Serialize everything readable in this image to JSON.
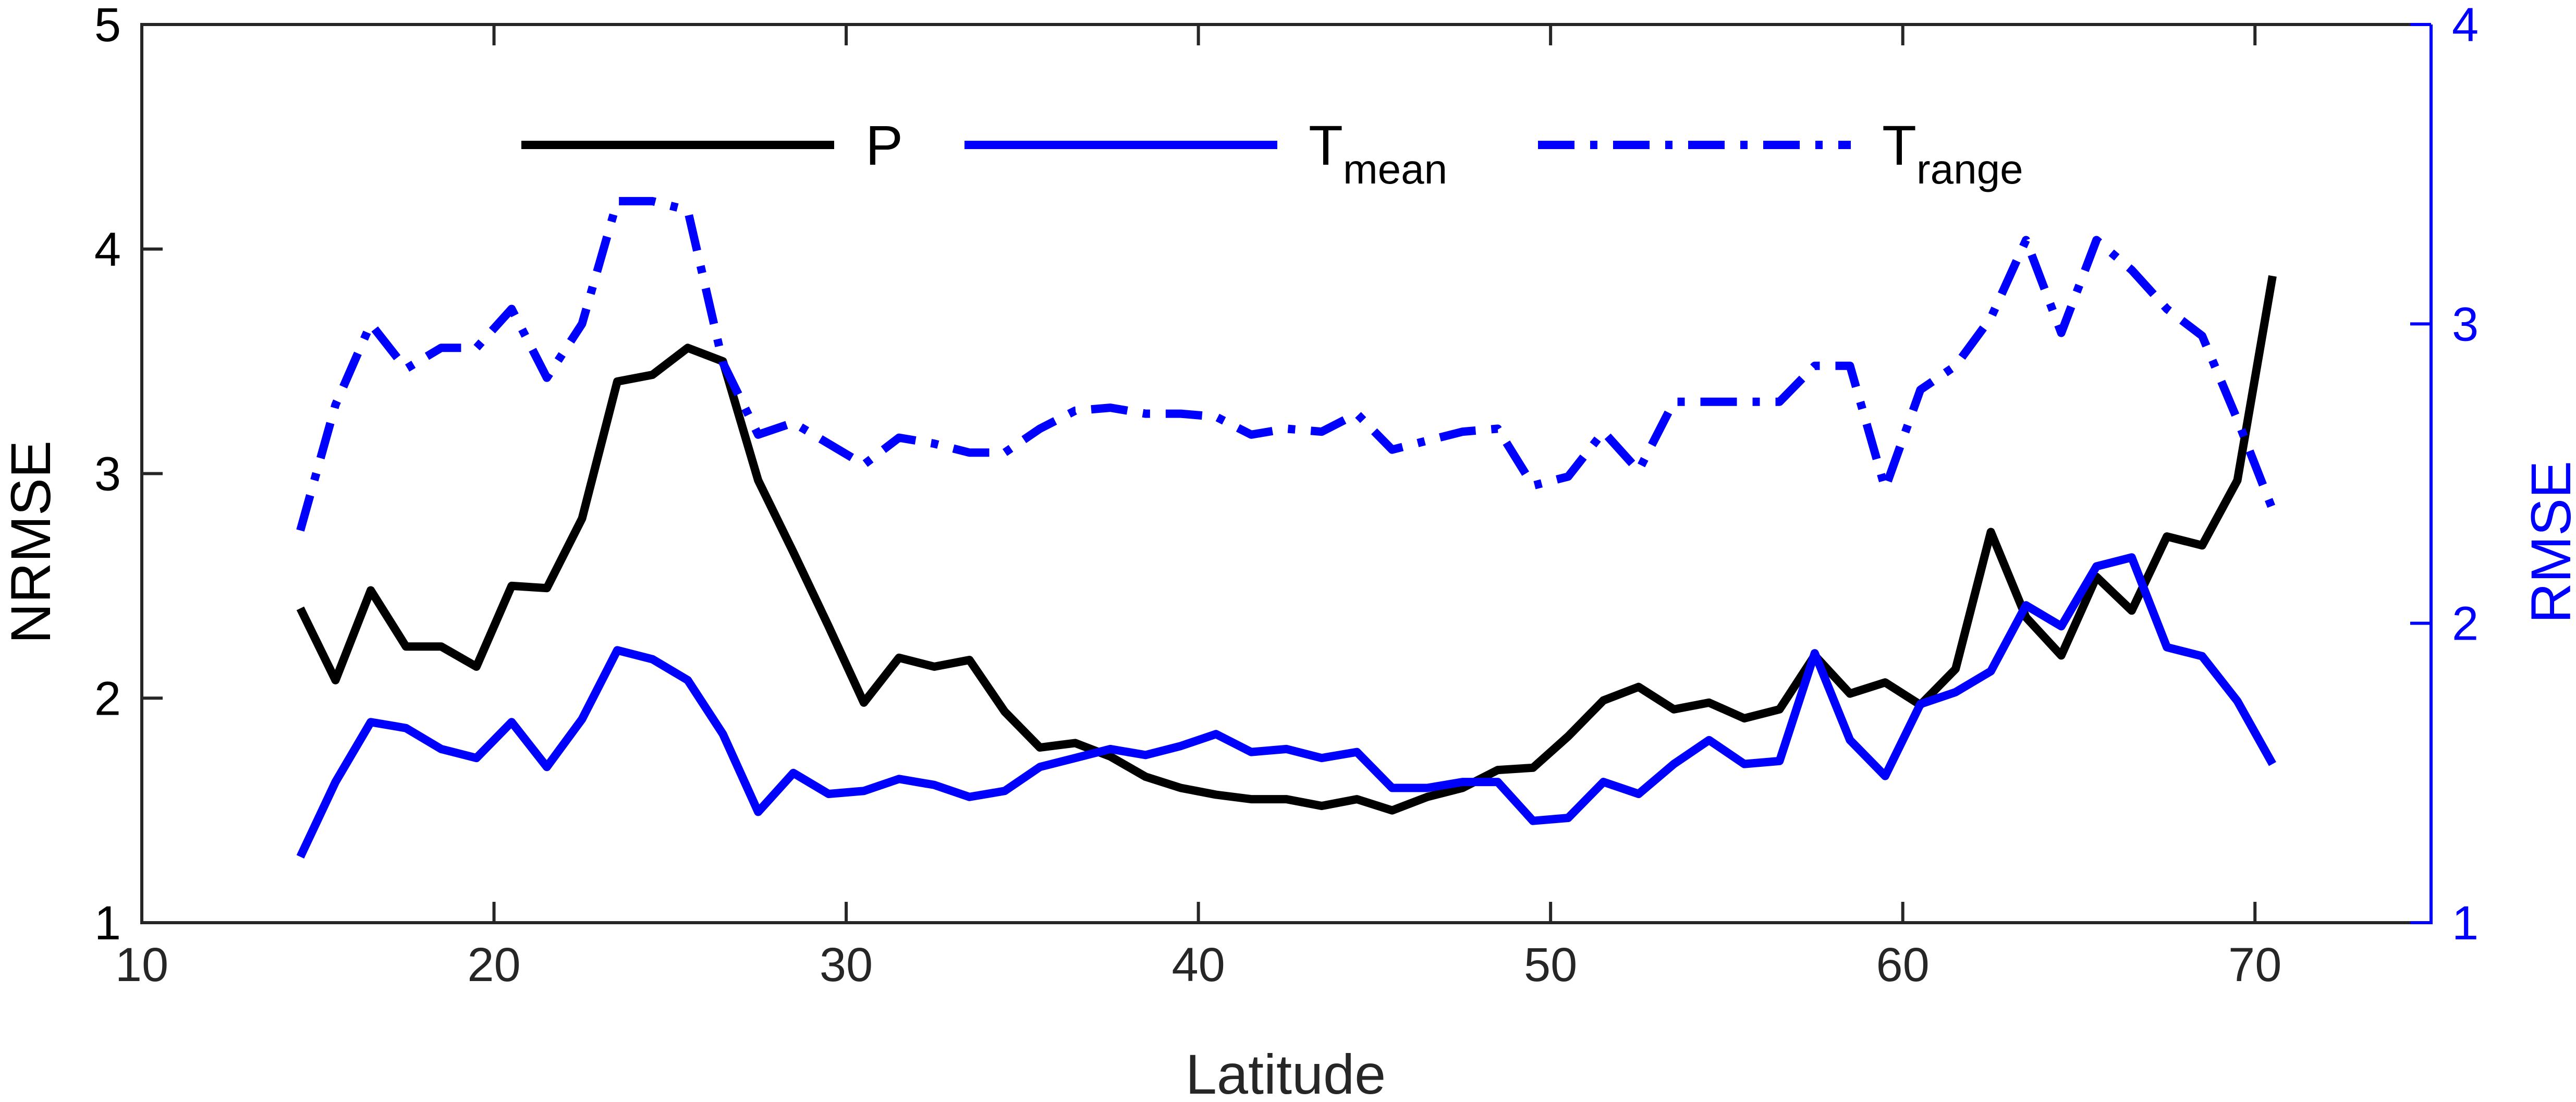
{
  "chart_data": {
    "type": "line",
    "title": "",
    "xlabel": "Latitude",
    "ylabel": "NRMSE",
    "y2label": "RMSE",
    "xlim": [
      10,
      75
    ],
    "ylim": [
      1,
      5
    ],
    "y2lim": [
      1,
      4
    ],
    "xticks": [
      10,
      20,
      30,
      40,
      50,
      60,
      70
    ],
    "yticks": [
      1,
      2,
      3,
      4,
      5
    ],
    "y2ticks": [
      1,
      2,
      3,
      4
    ],
    "grid": false,
    "legend_position": "top",
    "x": [
      14.5,
      15.5,
      16.5,
      17.5,
      18.5,
      19.5,
      20.5,
      21.5,
      22.5,
      23.5,
      24.5,
      25.5,
      26.5,
      27.5,
      28.5,
      29.5,
      30.5,
      31.5,
      32.5,
      33.5,
      34.5,
      35.5,
      36.5,
      37.5,
      38.5,
      39.5,
      40.5,
      41.5,
      42.5,
      43.5,
      44.5,
      45.5,
      46.5,
      47.5,
      48.5,
      49.5,
      50.5,
      51.5,
      52.5,
      53.5,
      54.5,
      55.5,
      56.5,
      57.5,
      58.5,
      59.5,
      60.5,
      61.5,
      62.5,
      63.5,
      64.5,
      65.5,
      66.5,
      67.5,
      68.5,
      69.5,
      70.5
    ],
    "series": [
      {
        "name": "P",
        "axis": "left",
        "color": "#000000",
        "dash": "solid",
        "values": [
          2.4,
          2.08,
          2.48,
          2.23,
          2.23,
          2.14,
          2.5,
          2.49,
          2.8,
          3.41,
          3.44,
          3.56,
          3.5,
          2.97,
          2.65,
          2.32,
          1.98,
          2.18,
          2.14,
          2.17,
          1.94,
          1.78,
          1.8,
          1.74,
          1.65,
          1.6,
          1.57,
          1.55,
          1.55,
          1.52,
          1.55,
          1.5,
          1.56,
          1.6,
          1.68,
          1.69,
          1.83,
          1.99,
          2.05,
          1.95,
          1.98,
          1.91,
          1.95,
          2.19,
          2.02,
          2.07,
          1.97,
          2.13,
          2.74,
          2.36,
          2.19,
          2.54,
          2.39,
          2.72,
          2.68,
          2.97,
          3.88
        ]
      },
      {
        "name": "T",
        "name_sub": "mean",
        "axis": "right",
        "color": "#0000ff",
        "dash": "solid",
        "values": [
          1.22,
          1.47,
          1.67,
          1.65,
          1.58,
          1.55,
          1.67,
          1.52,
          1.68,
          1.91,
          1.88,
          1.81,
          1.63,
          1.37,
          1.5,
          1.43,
          1.44,
          1.48,
          1.46,
          1.42,
          1.44,
          1.52,
          1.55,
          1.58,
          1.56,
          1.59,
          1.63,
          1.57,
          1.58,
          1.55,
          1.57,
          1.45,
          1.45,
          1.47,
          1.47,
          1.34,
          1.35,
          1.47,
          1.43,
          1.53,
          1.61,
          1.53,
          1.54,
          1.9,
          1.61,
          1.49,
          1.73,
          1.77,
          1.84,
          2.06,
          1.99,
          2.19,
          2.22,
          1.92,
          1.89,
          1.74,
          1.53
        ]
      },
      {
        "name": "T",
        "name_sub": "range",
        "axis": "right",
        "color": "#0000ff",
        "dash": "dashdot",
        "values": [
          2.31,
          2.73,
          3.0,
          2.85,
          2.92,
          2.92,
          3.05,
          2.82,
          3.0,
          3.41,
          3.41,
          3.38,
          2.87,
          2.63,
          2.67,
          2.6,
          2.53,
          2.62,
          2.6,
          2.57,
          2.57,
          2.65,
          2.71,
          2.72,
          2.7,
          2.7,
          2.69,
          2.63,
          2.65,
          2.64,
          2.7,
          2.58,
          2.61,
          2.64,
          2.65,
          2.46,
          2.49,
          2.64,
          2.51,
          2.74,
          2.74,
          2.74,
          2.74,
          2.86,
          2.86,
          2.45,
          2.78,
          2.86,
          3.02,
          3.28,
          2.97,
          3.28,
          3.18,
          3.05,
          2.96,
          2.68,
          2.38
        ]
      }
    ]
  }
}
